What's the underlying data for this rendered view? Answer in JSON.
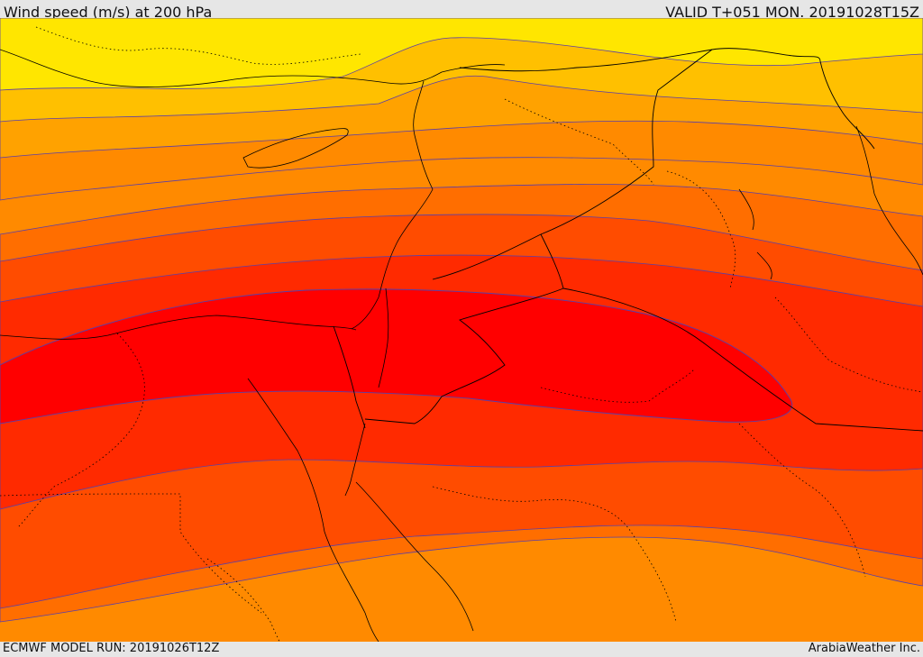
{
  "header": {
    "title": "Wind speed (m/s) at 200 hPa",
    "valid": "VALID T+051 MON. 20191028T15Z"
  },
  "footer": {
    "model_run": "ECMWF MODEL RUN: 20191026T12Z",
    "credit": "ArabiaWeather Inc."
  },
  "colors": {
    "band_1": "#ffe600",
    "band_2": "#ffc000",
    "band_3": "#ffa200",
    "band_4": "#ff8a00",
    "band_5": "#ff6e00",
    "band_6": "#ff4c00",
    "band_7": "#ff2a00",
    "band_8": "#ff0000",
    "contour_line": "#5a3fa8",
    "coastline": "#000000",
    "border_dotted": "#000000",
    "frame_background": "#e6e6e6"
  }
}
